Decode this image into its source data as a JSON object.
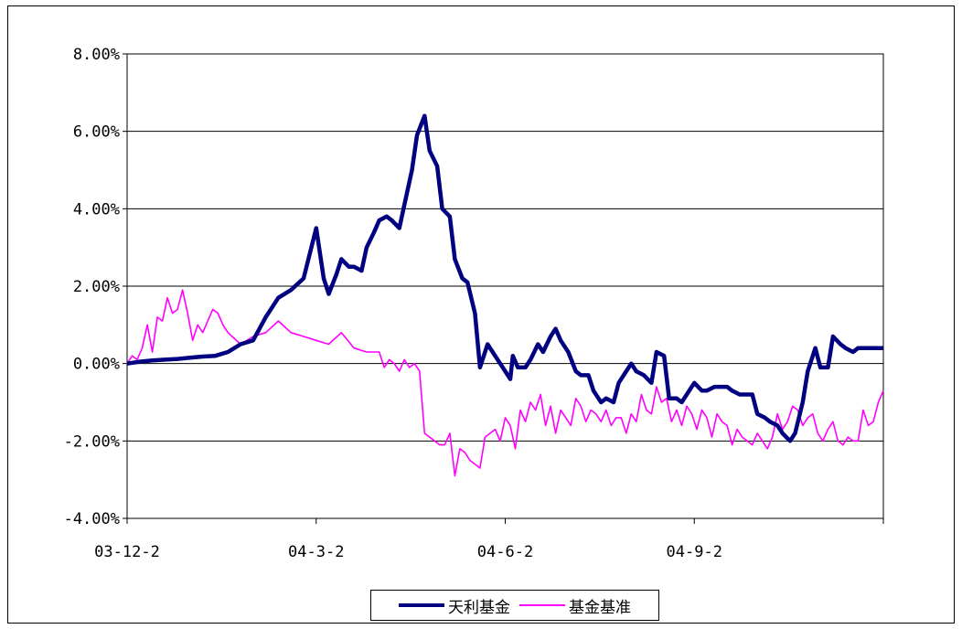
{
  "chart_data": {
    "type": "line",
    "title": "",
    "xlabel": "",
    "ylabel": "",
    "ylim": [
      -4,
      8
    ],
    "y_ticks": [
      "8.00%",
      "6.00%",
      "4.00%",
      "2.00%",
      "0.00%",
      "-2.00%",
      "-4.00%"
    ],
    "x_tick_labels": [
      "03-12-2",
      "04-3-2",
      "04-6-2",
      "04-9-2"
    ],
    "grid": "horizontal",
    "legend_position": "bottom",
    "colors": {
      "fund": "#000080",
      "benchmark": "#ff00ff"
    },
    "series": [
      {
        "name": "天利基金",
        "color": "#000080",
        "x": [
          0,
          5,
          10,
          15,
          20,
          25,
          30,
          35,
          40,
          45,
          50,
          55,
          60,
          65,
          70,
          75,
          78,
          80,
          83,
          85,
          88,
          90,
          93,
          95,
          98,
          100,
          103,
          105,
          108,
          110,
          113,
          115,
          118,
          120,
          123,
          125,
          128,
          130,
          133,
          135,
          138,
          140,
          143,
          145,
          148,
          150,
          152,
          153,
          155,
          158,
          160,
          163,
          165,
          168,
          170,
          172,
          175,
          178,
          180,
          183,
          185,
          188,
          190,
          193,
          195,
          198,
          200,
          202,
          205,
          208,
          210,
          213,
          215,
          218,
          220,
          223,
          225,
          228,
          230,
          233,
          235,
          238,
          240,
          243,
          245,
          248,
          250,
          253,
          255,
          258,
          260,
          263,
          265,
          268,
          270,
          273,
          275,
          278,
          280,
          283,
          285,
          288,
          290,
          293,
          295,
          298,
          300
        ],
        "y": [
          0.0,
          0.05,
          0.08,
          0.1,
          0.12,
          0.15,
          0.18,
          0.2,
          0.3,
          0.5,
          0.6,
          1.2,
          1.7,
          1.9,
          2.2,
          3.5,
          2.2,
          1.8,
          2.3,
          2.7,
          2.5,
          2.5,
          2.4,
          3.0,
          3.4,
          3.7,
          3.8,
          3.7,
          3.5,
          4.1,
          5.0,
          5.9,
          6.4,
          5.5,
          5.1,
          4.0,
          3.8,
          2.7,
          2.2,
          2.1,
          1.3,
          -0.1,
          0.5,
          0.3,
          0.0,
          -0.2,
          -0.4,
          0.2,
          -0.1,
          -0.1,
          0.1,
          0.5,
          0.3,
          0.7,
          0.9,
          0.6,
          0.3,
          -0.2,
          -0.3,
          -0.3,
          -0.7,
          -1.0,
          -0.9,
          -1.0,
          -0.5,
          -0.2,
          0.0,
          -0.2,
          -0.3,
          -0.5,
          0.3,
          0.2,
          -0.9,
          -0.9,
          -1.0,
          -0.7,
          -0.5,
          -0.7,
          -0.7,
          -0.6,
          -0.6,
          -0.6,
          -0.7,
          -0.8,
          -0.8,
          -0.8,
          -1.3,
          -1.4,
          -1.5,
          -1.6,
          -1.8,
          -2.0,
          -1.8,
          -1.0,
          -0.2,
          0.4,
          -0.1,
          -0.1,
          0.7,
          0.5,
          0.4,
          0.3,
          0.4,
          0.4,
          0.4,
          0.4,
          0.4
        ]
      },
      {
        "name": "基金基准",
        "color": "#ff00ff",
        "x": [
          0,
          2,
          4,
          6,
          8,
          10,
          12,
          14,
          16,
          18,
          20,
          22,
          24,
          26,
          28,
          30,
          32,
          34,
          36,
          38,
          40,
          45,
          50,
          55,
          60,
          65,
          70,
          75,
          80,
          85,
          90,
          95,
          100,
          102,
          104,
          106,
          108,
          110,
          112,
          114,
          116,
          118,
          120,
          122,
          124,
          126,
          128,
          130,
          132,
          134,
          136,
          138,
          140,
          142,
          144,
          146,
          148,
          150,
          152,
          154,
          156,
          158,
          160,
          162,
          164,
          166,
          168,
          170,
          172,
          174,
          176,
          178,
          180,
          182,
          184,
          186,
          188,
          190,
          192,
          194,
          196,
          198,
          200,
          202,
          204,
          206,
          208,
          210,
          212,
          214,
          216,
          218,
          220,
          222,
          224,
          226,
          228,
          230,
          232,
          234,
          236,
          238,
          240,
          242,
          244,
          246,
          248,
          250,
          252,
          254,
          256,
          258,
          260,
          262,
          264,
          266,
          268,
          270,
          272,
          274,
          276,
          278,
          280,
          282,
          284,
          286,
          288,
          290,
          292,
          294,
          296,
          298,
          300
        ],
        "y": [
          0.0,
          0.2,
          0.1,
          0.4,
          1.0,
          0.3,
          1.2,
          1.1,
          1.7,
          1.3,
          1.4,
          1.9,
          1.3,
          0.6,
          1.0,
          0.8,
          1.1,
          1.4,
          1.3,
          1.0,
          0.8,
          0.5,
          0.7,
          0.8,
          1.1,
          0.8,
          0.7,
          0.6,
          0.5,
          0.8,
          0.4,
          0.3,
          0.3,
          -0.1,
          0.1,
          0.0,
          -0.2,
          0.1,
          -0.1,
          0.0,
          -0.2,
          -1.8,
          -1.9,
          -2.0,
          -2.1,
          -2.1,
          -1.8,
          -2.9,
          -2.2,
          -2.3,
          -2.5,
          -2.6,
          -2.7,
          -1.9,
          -1.8,
          -1.7,
          -2.0,
          -1.4,
          -1.6,
          -2.2,
          -1.2,
          -1.5,
          -1.0,
          -1.2,
          -0.8,
          -1.6,
          -1.1,
          -1.8,
          -1.2,
          -1.4,
          -1.6,
          -0.9,
          -1.1,
          -1.5,
          -1.2,
          -1.3,
          -1.5,
          -1.2,
          -1.6,
          -1.4,
          -1.4,
          -1.8,
          -1.3,
          -1.5,
          -0.8,
          -1.2,
          -1.3,
          -0.6,
          -1.0,
          -0.9,
          -1.5,
          -1.2,
          -1.6,
          -1.1,
          -1.3,
          -1.7,
          -1.2,
          -1.4,
          -1.9,
          -1.3,
          -1.5,
          -1.6,
          -2.1,
          -1.7,
          -1.9,
          -2.0,
          -2.1,
          -1.8,
          -2.0,
          -2.2,
          -1.9,
          -1.3,
          -1.7,
          -1.5,
          -1.1,
          -1.2,
          -1.6,
          -1.4,
          -1.3,
          -1.8,
          -2.0,
          -1.7,
          -1.5,
          -2.0,
          -2.1,
          -1.9,
          -2.0,
          -2.0,
          -1.2,
          -1.6,
          -1.5,
          -1.0,
          -0.7
        ]
      }
    ]
  }
}
